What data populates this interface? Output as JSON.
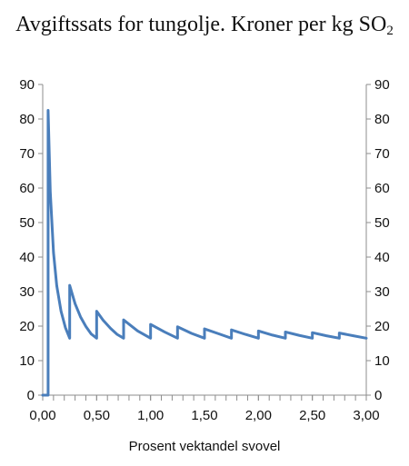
{
  "title_main": "Avgiftssats for tungolje. Kroner per kg SO",
  "title_sub": "2",
  "chart_data": {
    "type": "line",
    "title": "Avgiftssats for tungolje. Kroner per kg SO2",
    "xlabel": "Prosent vektandel svovel",
    "ylabel": "",
    "xlim": [
      0,
      3
    ],
    "ylim": [
      0,
      90
    ],
    "x_ticks": [
      0,
      0.5,
      1,
      1.5,
      2,
      2.5,
      3
    ],
    "x_tick_labels": [
      "0,00",
      "0,50",
      "1,00",
      "1,50",
      "2,00",
      "2,50",
      "3,00"
    ],
    "y_ticks": [
      0,
      10,
      20,
      30,
      40,
      50,
      60,
      70,
      80,
      90
    ],
    "y_tick_labels": [
      "0",
      "10",
      "20",
      "30",
      "40",
      "50",
      "60",
      "70",
      "80",
      "90"
    ],
    "right_axis_mirrored": true,
    "grid": false,
    "line_color": "#4a7ebb",
    "series": [
      {
        "name": "",
        "x": [
          0.0,
          0.04,
          0.05,
          0.05,
          0.07,
          0.1,
          0.13,
          0.17,
          0.21,
          0.25,
          0.25,
          0.3,
          0.35,
          0.4,
          0.45,
          0.5,
          0.5,
          0.56,
          0.63,
          0.69,
          0.75,
          0.75,
          0.88,
          1.0,
          1.0,
          1.13,
          1.25,
          1.25,
          1.38,
          1.5,
          1.5,
          1.63,
          1.75,
          1.75,
          1.88,
          2.0,
          2.0,
          2.13,
          2.25,
          2.25,
          2.38,
          2.5,
          2.5,
          2.63,
          2.75,
          2.75,
          2.88,
          3.0
        ],
        "y": [
          0,
          0,
          0,
          82.5,
          58.9,
          41.3,
          31.7,
          24.3,
          19.6,
          16.5,
          31.8,
          26.5,
          22.7,
          19.9,
          17.7,
          16.5,
          24.3,
          21.7,
          19.3,
          17.6,
          16.5,
          21.8,
          18.6,
          16.5,
          20.5,
          18.3,
          16.5,
          19.8,
          17.9,
          16.5,
          19.2,
          17.8,
          16.5,
          18.9,
          17.6,
          16.5,
          18.6,
          17.4,
          16.5,
          18.3,
          17.3,
          16.5,
          18.1,
          17.2,
          16.5,
          18.0,
          17.2,
          16.5
        ]
      }
    ]
  }
}
